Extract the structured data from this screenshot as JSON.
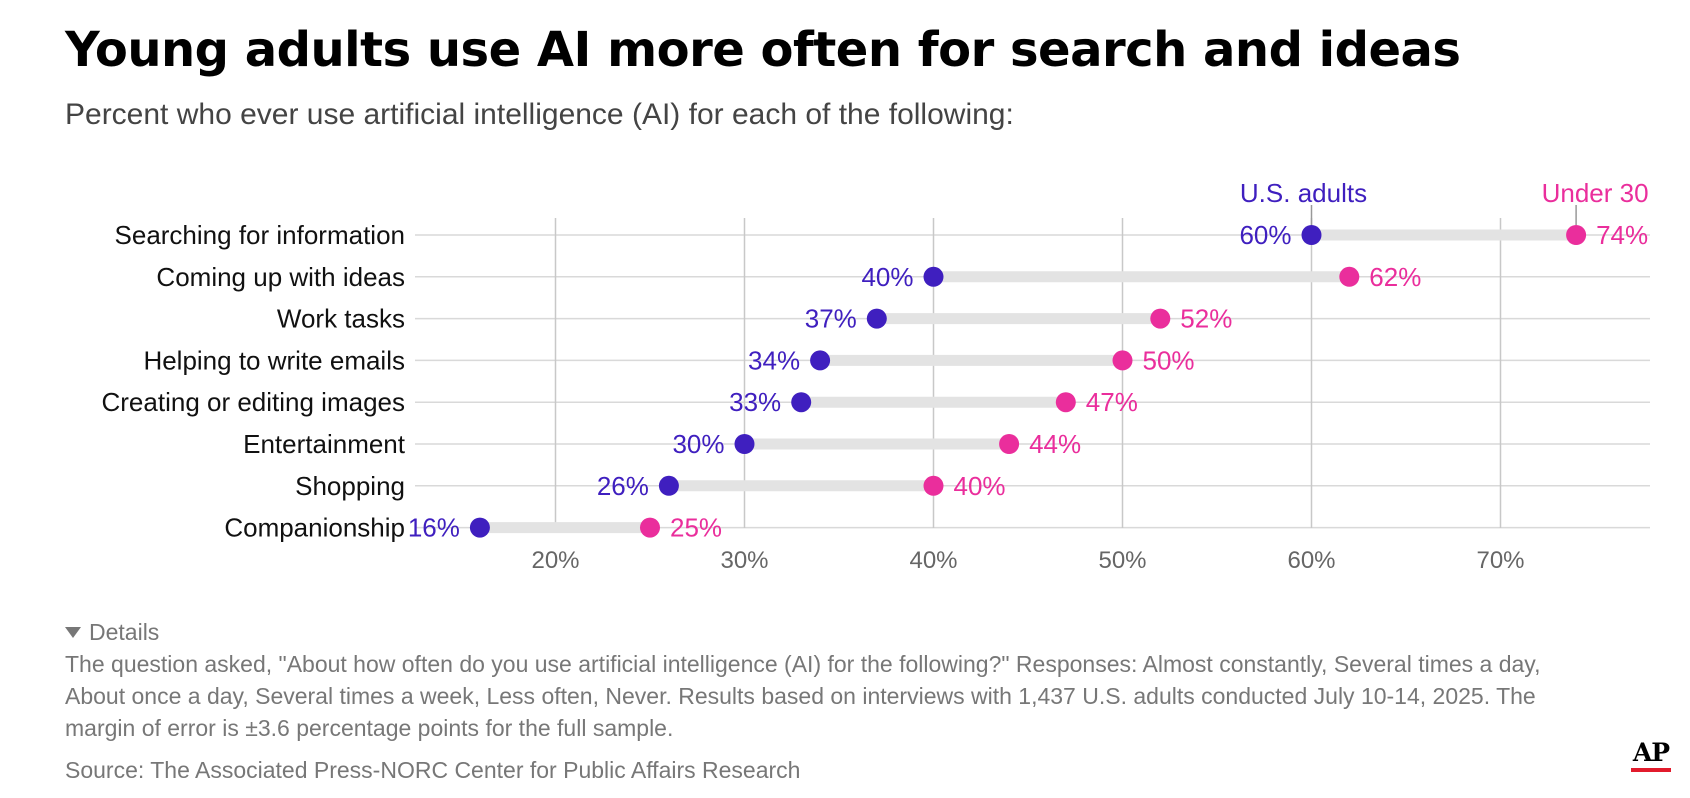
{
  "title": "Young adults use AI more often for search and ideas",
  "subtitle": "Percent who ever use artificial intelligence (AI) for each of the following:",
  "details": {
    "toggle_label": "Details",
    "note": "The question asked, \"About how often do you use artificial intelligence (AI) for the following?\" Responses: Almost constantly, Several times a day, About once a day, Several times a week, Less often, Never. Results based on interviews with 1,437 U.S. adults conducted July 10-14, 2025. The margin of error is ±3.6 percentage points for the full sample."
  },
  "source": "Source: The Associated Press-NORC Center for Public Affairs Research",
  "logo": {
    "text": "AP",
    "accent_color": "#e21b2c"
  },
  "colors": {
    "us_adults": "#3f1fbf",
    "under30": "#ea2e9c",
    "connector": "#e3e3e3",
    "grid": "#c8c8c8",
    "tick": "#666666"
  },
  "chart_data": {
    "type": "dot-plot",
    "categories": [
      "Searching for information",
      "Coming up with ideas",
      "Work tasks",
      "Helping to write emails",
      "Creating or editing images",
      "Entertainment",
      "Shopping",
      "Companionship"
    ],
    "series": [
      {
        "name": "U.S. adults",
        "color": "#3f1fbf",
        "values": [
          60,
          40,
          37,
          34,
          33,
          30,
          26,
          16
        ]
      },
      {
        "name": "Under 30",
        "color": "#ea2e9c",
        "values": [
          74,
          62,
          52,
          50,
          47,
          44,
          40,
          25
        ]
      }
    ],
    "x_ticks": [
      20,
      30,
      40,
      50,
      60,
      70
    ],
    "tick_suffix": "%",
    "value_suffix": "%",
    "xlim": [
      12,
      78
    ],
    "grid": true,
    "legend": "direct labels above first row"
  }
}
